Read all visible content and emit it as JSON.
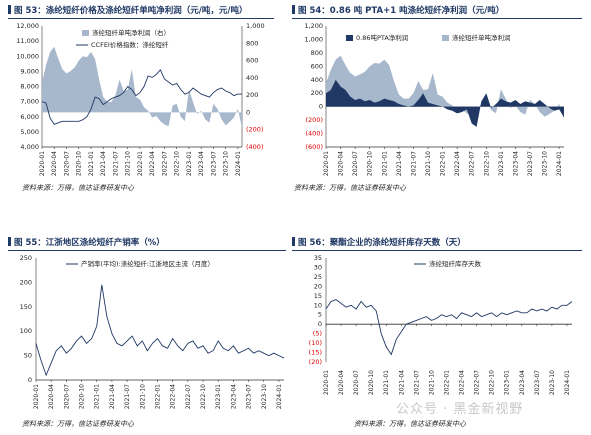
{
  "panels": [
    {
      "title": "图 53：涤纶短纤价格及涤纶短纤单吨净利润（元/吨，元/吨）",
      "source": "资料来源：万得，信达证券研发中心"
    },
    {
      "title": "图 54：0.86 吨 PTA+1 吨涤纶短纤净利润（元/吨）",
      "source": "资料来源：万得，信达证券研发中心"
    },
    {
      "title": "图 55：江浙地区涤纶短纤产销率（%）",
      "source": "资料来源：万得，信达证券研发中心"
    },
    {
      "title": "图 56：聚酯企业的涤纶短纤库存天数（天）",
      "source": "资料来源：万得，信达证券研发中心"
    }
  ],
  "watermark": "公众号 · 黑金新视野",
  "colors": {
    "title": "#1f3864",
    "line": "#1f3864",
    "area": "#a8b8cc",
    "negative": "#e00000"
  },
  "chart_data": [
    {
      "type": "area",
      "title": "",
      "x_ticks": [
        "2020-01",
        "2020-04",
        "2020-07",
        "2020-10",
        "2021-01",
        "2021-04",
        "2021-07",
        "2021-10",
        "2022-01",
        "2022-04",
        "2022-07",
        "2022-10",
        "2023-01",
        "2023-04",
        "2023-07",
        "2023-10",
        "2024-01"
      ],
      "y_left": {
        "range": [
          4000,
          12000
        ],
        "ticks": [
          "4,000",
          "5,000",
          "6,000",
          "7,000",
          "8,000",
          "9,000",
          "10,000",
          "11,000",
          "12,000"
        ]
      },
      "y_right": {
        "range": [
          -400,
          1000
        ],
        "ticks": [
          "(400)",
          "(200)",
          "0",
          "200",
          "400",
          "600",
          "800",
          "1,000"
        ]
      },
      "legend_position": "top-left",
      "series": [
        {
          "name": "涤纶短纤单吨净利润（右）",
          "kind": "area",
          "axis": "right",
          "x": [
            "2020-01",
            "2020-02",
            "2020-03",
            "2020-04",
            "2020-05",
            "2020-06",
            "2020-07",
            "2020-08",
            "2020-09",
            "2020-10",
            "2020-11",
            "2020-12",
            "2021-01",
            "2021-02",
            "2021-03",
            "2021-04",
            "2021-05",
            "2021-06",
            "2021-07",
            "2021-08",
            "2021-09",
            "2021-10",
            "2021-11",
            "2021-12",
            "2022-01",
            "2022-02",
            "2022-03",
            "2022-04",
            "2022-05",
            "2022-06",
            "2022-07",
            "2022-08",
            "2022-09",
            "2022-10",
            "2022-11",
            "2022-12",
            "2023-01",
            "2023-02",
            "2023-03",
            "2023-04",
            "2023-05",
            "2023-06",
            "2023-07",
            "2023-08",
            "2023-09",
            "2023-10",
            "2023-11",
            "2023-12",
            "2024-01",
            "2024-02"
          ],
          "values": [
            350,
            550,
            700,
            760,
            620,
            500,
            450,
            480,
            520,
            600,
            650,
            640,
            700,
            620,
            380,
            180,
            120,
            120,
            200,
            380,
            250,
            260,
            500,
            180,
            150,
            60,
            20,
            -60,
            -40,
            -100,
            -140,
            -160,
            80,
            100,
            -50,
            -100,
            260,
            120,
            -20,
            20,
            -80,
            -120,
            100,
            40,
            -80,
            -150,
            -110,
            -60,
            40,
            -180
          ]
        },
        {
          "name": "CCFEI价格指数：涤纶短纤",
          "kind": "line",
          "axis": "left",
          "x": [
            "2020-01",
            "2020-02",
            "2020-03",
            "2020-04",
            "2020-05",
            "2020-06",
            "2020-07",
            "2020-08",
            "2020-09",
            "2020-10",
            "2020-11",
            "2020-12",
            "2021-01",
            "2021-02",
            "2021-03",
            "2021-04",
            "2021-05",
            "2021-06",
            "2021-07",
            "2021-08",
            "2021-09",
            "2021-10",
            "2021-11",
            "2021-12",
            "2022-01",
            "2022-02",
            "2022-03",
            "2022-04",
            "2022-05",
            "2022-06",
            "2022-07",
            "2022-08",
            "2022-09",
            "2022-10",
            "2022-11",
            "2022-12",
            "2023-01",
            "2023-02",
            "2023-03",
            "2023-04",
            "2023-05",
            "2023-06",
            "2023-07",
            "2023-08",
            "2023-09",
            "2023-10",
            "2023-11",
            "2023-12",
            "2024-01",
            "2024-02"
          ],
          "values": [
            7000,
            6900,
            5900,
            5500,
            5600,
            5700,
            5700,
            5700,
            5700,
            5700,
            5800,
            6000,
            6500,
            7300,
            7200,
            6800,
            7000,
            7200,
            7300,
            7400,
            7600,
            8000,
            7800,
            7400,
            7600,
            8000,
            8700,
            8600,
            8800,
            9100,
            8500,
            8300,
            8100,
            8200,
            7800,
            7500,
            7600,
            7900,
            7700,
            7500,
            7400,
            7300,
            7600,
            7800,
            7900,
            7700,
            7600,
            7400,
            7500,
            7500
          ]
        }
      ]
    },
    {
      "type": "area",
      "title": "",
      "x_ticks": [
        "2020-01",
        "2020-04",
        "2020-07",
        "2020-10",
        "2021-01",
        "2021-04",
        "2021-07",
        "2021-10",
        "2022-01",
        "2022-04",
        "2022-07",
        "2022-10",
        "2023-01",
        "2023-04",
        "2023-07",
        "2023-10",
        "2024-01"
      ],
      "y": {
        "range": [
          -600,
          1200
        ],
        "ticks": [
          "(600)",
          "(400)",
          "(200)",
          "0",
          "200",
          "400",
          "600",
          "800",
          "1,000",
          "1,200"
        ]
      },
      "legend_position": "top-left",
      "series": [
        {
          "name": "0.86吨PTA净利润",
          "kind": "area",
          "x": [
            "2020-01",
            "2020-02",
            "2020-03",
            "2020-04",
            "2020-05",
            "2020-06",
            "2020-07",
            "2020-08",
            "2020-09",
            "2020-10",
            "2020-11",
            "2020-12",
            "2021-01",
            "2021-02",
            "2021-03",
            "2021-04",
            "2021-05",
            "2021-06",
            "2021-07",
            "2021-08",
            "2021-09",
            "2021-10",
            "2021-11",
            "2021-12",
            "2022-01",
            "2022-02",
            "2022-03",
            "2022-04",
            "2022-05",
            "2022-06",
            "2022-07",
            "2022-08",
            "2022-09",
            "2022-10",
            "2022-11",
            "2022-12",
            "2023-01",
            "2023-02",
            "2023-03",
            "2023-04",
            "2023-05",
            "2023-06",
            "2023-07",
            "2023-08",
            "2023-09",
            "2023-10",
            "2023-11",
            "2023-12",
            "2024-01",
            "2024-02"
          ],
          "values": [
            200,
            250,
            400,
            300,
            250,
            150,
            100,
            120,
            80,
            100,
            60,
            80,
            120,
            100,
            80,
            40,
            20,
            0,
            20,
            100,
            200,
            60,
            40,
            20,
            0,
            -40,
            -60,
            -100,
            -80,
            -40,
            -250,
            -300,
            80,
            200,
            -20,
            40,
            120,
            80,
            60,
            100,
            40,
            80,
            60,
            40,
            100,
            40,
            -20,
            -60,
            -40,
            -160
          ]
        },
        {
          "name": "涤纶短纤单吨净利润",
          "kind": "area",
          "x": [
            "2020-01",
            "2020-02",
            "2020-03",
            "2020-04",
            "2020-05",
            "2020-06",
            "2020-07",
            "2020-08",
            "2020-09",
            "2020-10",
            "2020-11",
            "2020-12",
            "2021-01",
            "2021-02",
            "2021-03",
            "2021-04",
            "2021-05",
            "2021-06",
            "2021-07",
            "2021-08",
            "2021-09",
            "2021-10",
            "2021-11",
            "2021-12",
            "2022-01",
            "2022-02",
            "2022-03",
            "2022-04",
            "2022-05",
            "2022-06",
            "2022-07",
            "2022-08",
            "2022-09",
            "2022-10",
            "2022-11",
            "2022-12",
            "2023-01",
            "2023-02",
            "2023-03",
            "2023-04",
            "2023-05",
            "2023-06",
            "2023-07",
            "2023-08",
            "2023-09",
            "2023-10",
            "2023-11",
            "2023-12",
            "2024-01",
            "2024-02"
          ],
          "values": [
            350,
            550,
            700,
            760,
            620,
            500,
            450,
            480,
            520,
            600,
            650,
            640,
            700,
            620,
            380,
            180,
            120,
            120,
            200,
            380,
            250,
            260,
            500,
            180,
            150,
            60,
            20,
            -60,
            -40,
            -100,
            -140,
            -160,
            80,
            100,
            -50,
            -100,
            260,
            120,
            -20,
            20,
            -80,
            -120,
            100,
            40,
            -80,
            -150,
            -110,
            -60,
            40,
            -180
          ]
        }
      ]
    },
    {
      "type": "line",
      "title": "",
      "x_ticks": [
        "2020-01",
        "2020-04",
        "2020-07",
        "2020-10",
        "2021-01",
        "2021-04",
        "2021-07",
        "2021-10",
        "2022-01",
        "2022-04",
        "2022-07",
        "2022-10",
        "2023-01",
        "2023-04",
        "2023-07",
        "2023-10",
        "2024-01"
      ],
      "y": {
        "range": [
          0,
          250
        ],
        "ticks": [
          "0",
          "50",
          "100",
          "150",
          "200",
          "250"
        ]
      },
      "legend_position": "top-left",
      "series": [
        {
          "name": "产销率(平均):涤纶短纤:江浙地区主流（月度）",
          "x": [
            "2020-01",
            "2020-02",
            "2020-03",
            "2020-04",
            "2020-05",
            "2020-06",
            "2020-07",
            "2020-08",
            "2020-09",
            "2020-10",
            "2020-11",
            "2020-12",
            "2021-01",
            "2021-02",
            "2021-03",
            "2021-04",
            "2021-05",
            "2021-06",
            "2021-07",
            "2021-08",
            "2021-09",
            "2021-10",
            "2021-11",
            "2021-12",
            "2022-01",
            "2022-02",
            "2022-03",
            "2022-04",
            "2022-05",
            "2022-06",
            "2022-07",
            "2022-08",
            "2022-09",
            "2022-10",
            "2022-11",
            "2022-12",
            "2023-01",
            "2023-02",
            "2023-03",
            "2023-04",
            "2023-05",
            "2023-06",
            "2023-07",
            "2023-08",
            "2023-09",
            "2023-10",
            "2023-11",
            "2023-12",
            "2024-01",
            "2024-02"
          ],
          "values": [
            75,
            40,
            10,
            35,
            60,
            70,
            55,
            65,
            80,
            90,
            75,
            85,
            110,
            195,
            130,
            95,
            75,
            70,
            80,
            90,
            70,
            80,
            60,
            75,
            85,
            70,
            65,
            85,
            70,
            60,
            75,
            80,
            65,
            70,
            55,
            60,
            80,
            65,
            60,
            70,
            55,
            60,
            65,
            55,
            60,
            55,
            50,
            55,
            50,
            45
          ]
        }
      ]
    },
    {
      "type": "line",
      "title": "",
      "x_ticks": [
        "2020-01",
        "2020-04",
        "2020-07",
        "2020-10",
        "2021-01",
        "2021-04",
        "2021-07",
        "2021-10",
        "2022-01",
        "2022-04",
        "2022-07",
        "2022-10",
        "2023-01",
        "2023-04",
        "2023-07",
        "2023-10",
        "2024-01"
      ],
      "y": {
        "range": [
          -20,
          35
        ],
        "ticks": [
          "(20)",
          "(15)",
          "(10)",
          "(5)",
          "0",
          "5",
          "10",
          "15",
          "20",
          "25",
          "30",
          "35"
        ]
      },
      "legend_position": "top-left",
      "series": [
        {
          "name": "涤纶短纤库存天数",
          "x": [
            "2020-01",
            "2020-02",
            "2020-03",
            "2020-04",
            "2020-05",
            "2020-06",
            "2020-07",
            "2020-08",
            "2020-09",
            "2020-10",
            "2020-11",
            "2020-12",
            "2021-01",
            "2021-02",
            "2021-03",
            "2021-04",
            "2021-05",
            "2021-06",
            "2021-07",
            "2021-08",
            "2021-09",
            "2021-10",
            "2021-11",
            "2021-12",
            "2022-01",
            "2022-02",
            "2022-03",
            "2022-04",
            "2022-05",
            "2022-06",
            "2022-07",
            "2022-08",
            "2022-09",
            "2022-10",
            "2022-11",
            "2022-12",
            "2023-01",
            "2023-02",
            "2023-03",
            "2023-04",
            "2023-05",
            "2023-06",
            "2023-07",
            "2023-08",
            "2023-09",
            "2023-10",
            "2023-11",
            "2023-12",
            "2024-01",
            "2024-02"
          ],
          "values": [
            8,
            12,
            13,
            11,
            9,
            10,
            8,
            12,
            9,
            10,
            7,
            -5,
            -12,
            -16,
            -8,
            -4,
            0,
            1,
            2,
            3,
            4,
            2,
            3,
            5,
            4,
            5,
            3,
            6,
            5,
            4,
            6,
            4,
            5,
            6,
            4,
            6,
            5,
            6,
            7,
            6,
            6,
            8,
            7,
            8,
            7,
            9,
            8,
            10,
            10,
            12
          ]
        }
      ]
    }
  ]
}
